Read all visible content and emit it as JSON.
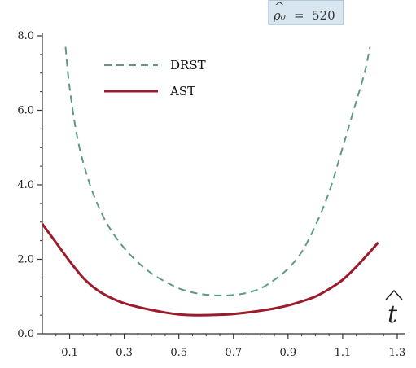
{
  "chart_data": {
    "type": "line",
    "title": "",
    "xlabel": "t",
    "ylabel": "",
    "xlim": [
      0,
      1.3
    ],
    "ylim": [
      0,
      8
    ],
    "x_ticks": [
      0.1,
      0.3,
      0.5,
      0.7,
      0.9,
      1.1,
      1.3
    ],
    "x_tick_labels": [
      "0.1",
      "0.3",
      "0.5",
      "0.7",
      "0.9",
      "1.1",
      "1.3"
    ],
    "y_ticks": [
      0,
      2,
      4,
      6,
      8
    ],
    "y_tick_labels": [
      "0.0",
      "2.0",
      "4.0",
      "6.0",
      "8.0"
    ],
    "grid": false,
    "legend_position": "top-left",
    "annotation": {
      "symbol": "ρ₀",
      "operator": "=",
      "value": "520"
    },
    "series": [
      {
        "name": "DRST",
        "color": "#5f9a86",
        "style": "dashed",
        "x": [
          0.085,
          0.1,
          0.13,
          0.17,
          0.21,
          0.25,
          0.3,
          0.35,
          0.4,
          0.45,
          0.5,
          0.55,
          0.6,
          0.65,
          0.7,
          0.75,
          0.8,
          0.85,
          0.9,
          0.95,
          1.0,
          1.05,
          1.1,
          1.14,
          1.18,
          1.2
        ],
        "y": [
          7.7,
          6.6,
          5.2,
          4.1,
          3.35,
          2.8,
          2.3,
          1.92,
          1.62,
          1.4,
          1.22,
          1.11,
          1.05,
          1.03,
          1.04,
          1.1,
          1.22,
          1.45,
          1.75,
          2.2,
          2.9,
          3.8,
          5.0,
          6.0,
          7.0,
          7.7
        ]
      },
      {
        "name": "AST",
        "color": "#9b1b2a",
        "style": "solid",
        "x": [
          0.0,
          0.05,
          0.1,
          0.15,
          0.2,
          0.25,
          0.3,
          0.35,
          0.4,
          0.45,
          0.5,
          0.55,
          0.6,
          0.65,
          0.7,
          0.75,
          0.8,
          0.85,
          0.9,
          0.95,
          1.0,
          1.05,
          1.1,
          1.15,
          1.2,
          1.23
        ],
        "y": [
          2.95,
          2.45,
          1.95,
          1.5,
          1.18,
          0.97,
          0.82,
          0.72,
          0.64,
          0.57,
          0.52,
          0.5,
          0.5,
          0.51,
          0.53,
          0.57,
          0.62,
          0.68,
          0.76,
          0.87,
          1.0,
          1.2,
          1.45,
          1.8,
          2.2,
          2.45
        ]
      }
    ]
  }
}
